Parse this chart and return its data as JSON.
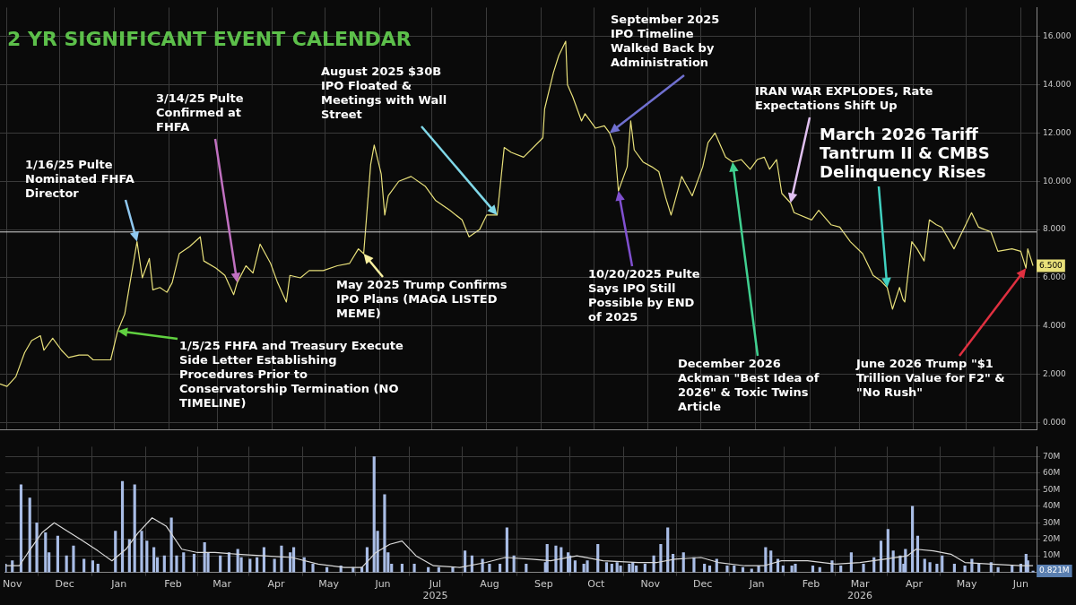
{
  "chart_data": [
    {
      "type": "line",
      "title": "2 YR SIGNIFICANT EVENT CALENDAR",
      "grid": true,
      "legend": false,
      "marker": "none",
      "line_style": "solid",
      "tick_labels": "y",
      "xlim": [
        "2024-10-28",
        "2026-06-10"
      ],
      "xticks": [
        "2024-11-01",
        "2024-12-01",
        "2025-01-01",
        "2025-02-01",
        "2025-03-01",
        "2025-04-01",
        "2025-05-01",
        "2025-06-01",
        "2025-07-01",
        "2025-08-01",
        "2025-09-01",
        "2025-10-01",
        "2025-11-01",
        "2025-12-01",
        "2026-01-01",
        "2026-02-01",
        "2026-03-01",
        "2026-04-01",
        "2026-05-01",
        "2026-06-01"
      ],
      "ylim": [
        -0.3,
        17.2
      ],
      "yticks": [
        {
          "value": 0,
          "label": "0.000"
        },
        {
          "value": 2,
          "label": "2.000"
        },
        {
          "value": 4,
          "label": "4.000"
        },
        {
          "value": 6,
          "label": "6.000"
        },
        {
          "value": 8,
          "label": "8.000"
        },
        {
          "value": 10,
          "label": "10.000"
        },
        {
          "value": 12,
          "label": "12.000"
        },
        {
          "value": 14,
          "label": "14.000"
        },
        {
          "value": 16,
          "label": "16.000"
        }
      ],
      "ref_lines": [
        {
          "axis": "y",
          "value": 7.9,
          "color": "#d8d8d8"
        }
      ],
      "series": [
        {
          "type": "line",
          "color": "#e8e07a",
          "x": [
            "2024-10-28",
            "2024-11-01",
            "2024-11-06",
            "2024-11-11",
            "2024-11-15",
            "2024-11-20",
            "2024-11-22",
            "2024-11-27",
            "2024-12-02",
            "2024-12-06",
            "2024-12-12",
            "2024-12-17",
            "2024-12-20",
            "2024-12-30",
            "2025-01-03",
            "2025-01-07",
            "2025-01-10",
            "2025-01-14",
            "2025-01-17",
            "2025-01-21",
            "2025-01-23",
            "2025-01-27",
            "2025-01-31",
            "2025-02-03",
            "2025-02-07",
            "2025-02-13",
            "2025-02-19",
            "2025-02-21",
            "2025-02-28",
            "2025-03-05",
            "2025-03-10",
            "2025-03-12",
            "2025-03-17",
            "2025-03-21",
            "2025-03-25",
            "2025-03-31",
            "2025-04-04",
            "2025-04-09",
            "2025-04-11",
            "2025-04-17",
            "2025-04-22",
            "2025-04-30",
            "2025-05-08",
            "2025-05-15",
            "2025-05-20",
            "2025-05-23",
            "2025-05-27",
            "2025-05-29",
            "2025-06-02",
            "2025-06-04",
            "2025-06-06",
            "2025-06-12",
            "2025-06-19",
            "2025-06-27",
            "2025-07-03",
            "2025-07-11",
            "2025-07-18",
            "2025-07-22",
            "2025-07-28",
            "2025-08-01",
            "2025-08-07",
            "2025-08-11",
            "2025-08-15",
            "2025-08-22",
            "2025-09-02",
            "2025-09-03",
            "2025-09-08",
            "2025-09-11",
            "2025-09-15",
            "2025-09-16",
            "2025-09-19",
            "2025-09-24",
            "2025-09-26",
            "2025-10-02",
            "2025-10-07",
            "2025-10-10",
            "2025-10-13",
            "2025-10-15",
            "2025-10-20",
            "2025-10-22",
            "2025-10-24",
            "2025-10-29",
            "2025-11-03",
            "2025-11-07",
            "2025-11-11",
            "2025-11-14",
            "2025-11-20",
            "2025-11-26",
            "2025-12-02",
            "2025-12-05",
            "2025-12-09",
            "2025-12-15",
            "2025-12-19",
            "2025-12-24",
            "2025-12-29",
            "2026-01-02",
            "2026-01-06",
            "2026-01-09",
            "2026-01-13",
            "2026-01-16",
            "2026-01-21",
            "2026-01-23",
            "2026-02-02",
            "2026-02-06",
            "2026-02-13",
            "2026-02-18",
            "2026-02-24",
            "2026-03-03",
            "2026-03-09",
            "2026-03-13",
            "2026-03-17",
            "2026-03-20",
            "2026-03-24",
            "2026-03-26",
            "2026-03-27",
            "2026-03-31",
            "2026-04-03",
            "2026-04-07",
            "2026-04-10",
            "2026-04-14",
            "2026-04-17",
            "2026-04-24",
            "2026-04-30",
            "2026-05-04",
            "2026-05-08",
            "2026-05-15",
            "2026-05-19",
            "2026-05-27",
            "2026-06-01",
            "2026-06-04",
            "2026-06-05",
            "2026-06-08"
          ],
          "values": [
            1.6,
            1.5,
            1.9,
            2.9,
            3.4,
            3.6,
            3.0,
            3.5,
            3.0,
            2.7,
            2.8,
            2.8,
            2.6,
            2.6,
            3.8,
            4.5,
            5.8,
            7.5,
            6.0,
            6.8,
            5.5,
            5.6,
            5.4,
            5.8,
            7.0,
            7.3,
            7.7,
            6.7,
            6.4,
            6.1,
            5.3,
            5.8,
            6.5,
            6.2,
            7.4,
            6.6,
            5.8,
            5.0,
            6.1,
            6.0,
            6.3,
            6.3,
            6.5,
            6.6,
            7.2,
            7.0,
            10.7,
            11.5,
            10.3,
            8.6,
            9.4,
            10.0,
            10.2,
            9.8,
            9.2,
            8.8,
            8.4,
            7.7,
            8.0,
            8.6,
            8.6,
            11.4,
            11.2,
            11.0,
            11.8,
            13.0,
            14.5,
            15.2,
            15.8,
            14.0,
            13.5,
            12.5,
            12.8,
            12.2,
            12.3,
            12.0,
            11.4,
            9.6,
            10.6,
            12.5,
            11.3,
            10.8,
            10.6,
            10.4,
            9.3,
            8.6,
            10.2,
            9.4,
            10.6,
            11.6,
            12.0,
            11.0,
            10.8,
            10.9,
            10.5,
            10.9,
            11.0,
            10.5,
            10.9,
            9.5,
            9.1,
            8.7,
            8.4,
            8.8,
            8.2,
            8.1,
            7.5,
            7.0,
            6.1,
            5.9,
            5.6,
            4.7,
            5.6,
            5.1,
            5.0,
            7.5,
            7.2,
            6.7,
            8.4,
            8.2,
            8.1,
            7.2,
            8.1,
            8.7,
            8.1,
            7.9,
            7.1,
            7.2,
            7.1,
            6.4,
            7.2,
            6.5
          ]
        }
      ],
      "annotations": [
        {
          "text": "1/16/25 Pulte Nominated FHFA Director",
          "x": "2025-01-14",
          "y": 7.5
        },
        {
          "text": "3/14/25 Pulte Confirmed at FHFA",
          "x": "2025-03-12",
          "y": 5.8
        },
        {
          "text": "August 2025 $30B IPO Floated & Meetings with Wall Street",
          "x": "2025-08-07",
          "y": 8.6
        },
        {
          "text": "September 2025 IPO Timeline Walked Back by Administration",
          "x": "2025-10-10",
          "y": 12.0
        },
        {
          "text": "IRAN WAR EXPLODES, Rate Expectations Shift Up",
          "x": "2026-01-21",
          "y": 9.1
        },
        {
          "text": "March 2026 Tariff Tantrum II & CMBS Delinquency Rises",
          "x": "2026-03-17",
          "y": 5.6
        },
        {
          "text": "May 2025 Trump Confirms IPO Plans (MAGA LISTED MEME)",
          "x": "2025-05-23",
          "y": 7.0
        },
        {
          "text": "1/5/25 FHFA and Treasury Execute Side Letter Establishing Procedures Prior to Conservatorship Termination (NO TIMELINE)",
          "x": "2025-01-03",
          "y": 3.8
        },
        {
          "text": "10/20/2025 Pulte Says IPO Still Possible by END of 2025",
          "x": "2025-10-15",
          "y": 9.6
        },
        {
          "text": "December 2026 Ackman \"Best Idea of 2026\" & Toxic Twins Article",
          "x": "2025-12-19",
          "y": 10.8
        },
        {
          "text": "June 2026 Trump \"$1 Trillion Value for F2\" & \"No Rush\"",
          "x": "2026-06-04",
          "y": 6.4
        },
        {
          "text": "6.500",
          "x": "2026-06-08",
          "y": 6.5
        }
      ]
    },
    {
      "type": "bar",
      "grid": true,
      "legend": false,
      "marker": "none",
      "xlim": [
        "2024-10-28",
        "2026-06-10"
      ],
      "xticks": [
        {
          "value": "2024-11-01",
          "label": "Nov"
        },
        {
          "value": "2024-12-01",
          "label": "Dec"
        },
        {
          "value": "2025-01-01",
          "label": "Jan"
        },
        {
          "value": "2025-02-01",
          "label": "Feb"
        },
        {
          "value": "2025-03-01",
          "label": "Mar"
        },
        {
          "value": "2025-04-01",
          "label": "Apr"
        },
        {
          "value": "2025-05-01",
          "label": "May"
        },
        {
          "value": "2025-06-01",
          "label": "Jun"
        },
        {
          "value": "2025-07-01",
          "label": "Jul\n2025"
        },
        {
          "value": "2025-08-01",
          "label": "Aug"
        },
        {
          "value": "2025-09-01",
          "label": "Sep"
        },
        {
          "value": "2025-10-01",
          "label": "Oct"
        },
        {
          "value": "2025-11-01",
          "label": "Nov"
        },
        {
          "value": "2025-12-01",
          "label": "Dec"
        },
        {
          "value": "2026-01-01",
          "label": "Jan"
        },
        {
          "value": "2026-02-01",
          "label": "Feb"
        },
        {
          "value": "2026-03-01",
          "label": "Mar\n2026"
        },
        {
          "value": "2026-04-01",
          "label": "Apr"
        },
        {
          "value": "2026-05-01",
          "label": "May"
        },
        {
          "value": "2026-06-01",
          "label": "Jun"
        }
      ],
      "ylim": [
        0,
        76
      ],
      "yticks": [
        {
          "value": 10,
          "label": "10M"
        },
        {
          "value": 20,
          "label": "20M"
        },
        {
          "value": 30,
          "label": "30M"
        },
        {
          "value": 40,
          "label": "40M"
        },
        {
          "value": 50,
          "label": "50M"
        },
        {
          "value": 60,
          "label": "60M"
        },
        {
          "value": 70,
          "label": "70M"
        }
      ],
      "series": [
        {
          "type": "bar",
          "color": "#a9bde6",
          "x": [
            "2024-10-28",
            "2024-11-01",
            "2024-11-06",
            "2024-11-11",
            "2024-11-15",
            "2024-11-20",
            "2024-11-22",
            "2024-11-27",
            "2024-12-02",
            "2024-12-06",
            "2024-12-12",
            "2024-12-17",
            "2024-12-20",
            "2024-12-30",
            "2025-01-03",
            "2025-01-07",
            "2025-01-10",
            "2025-01-14",
            "2025-01-17",
            "2025-01-21",
            "2025-01-23",
            "2025-01-27",
            "2025-01-31",
            "2025-02-03",
            "2025-02-07",
            "2025-02-13",
            "2025-02-19",
            "2025-02-21",
            "2025-02-28",
            "2025-03-05",
            "2025-03-10",
            "2025-03-12",
            "2025-03-17",
            "2025-03-21",
            "2025-03-25",
            "2025-03-31",
            "2025-04-04",
            "2025-04-09",
            "2025-04-11",
            "2025-04-17",
            "2025-04-22",
            "2025-04-30",
            "2025-05-08",
            "2025-05-15",
            "2025-05-20",
            "2025-05-23",
            "2025-05-27",
            "2025-05-29",
            "2025-06-02",
            "2025-06-04",
            "2025-06-06",
            "2025-06-12",
            "2025-06-19",
            "2025-06-27",
            "2025-07-03",
            "2025-07-11",
            "2025-07-18",
            "2025-07-22",
            "2025-07-28",
            "2025-08-01",
            "2025-08-07",
            "2025-08-11",
            "2025-08-15",
            "2025-08-22",
            "2025-09-02",
            "2025-09-03",
            "2025-09-08",
            "2025-09-11",
            "2025-09-15",
            "2025-09-16",
            "2025-09-19",
            "2025-09-24",
            "2025-09-26",
            "2025-10-02",
            "2025-10-07",
            "2025-10-10",
            "2025-10-13",
            "2025-10-15",
            "2025-10-20",
            "2025-10-22",
            "2025-10-24",
            "2025-10-29",
            "2025-11-03",
            "2025-11-07",
            "2025-11-11",
            "2025-11-14",
            "2025-11-20",
            "2025-11-26",
            "2025-12-02",
            "2025-12-05",
            "2025-12-09",
            "2025-12-15",
            "2025-12-19",
            "2025-12-24",
            "2025-12-29",
            "2026-01-02",
            "2026-01-06",
            "2026-01-09",
            "2026-01-13",
            "2026-01-16",
            "2026-01-21",
            "2026-01-23",
            "2026-02-02",
            "2026-02-06",
            "2026-02-13",
            "2026-02-18",
            "2026-02-24",
            "2026-03-03",
            "2026-03-09",
            "2026-03-13",
            "2026-03-17",
            "2026-03-20",
            "2026-03-24",
            "2026-03-26",
            "2026-03-27",
            "2026-03-31",
            "2026-04-03",
            "2026-04-07",
            "2026-04-10",
            "2026-04-14",
            "2026-04-17",
            "2026-04-24",
            "2026-04-30",
            "2026-05-04",
            "2026-05-08",
            "2026-05-15",
            "2026-05-19",
            "2026-05-27",
            "2026-06-01",
            "2026-06-04",
            "2026-06-05",
            "2026-06-08"
          ],
          "values": [
            5,
            7,
            53,
            45,
            30,
            24,
            12,
            22,
            10,
            16,
            8,
            7,
            5,
            25,
            55,
            20,
            53,
            25,
            19,
            15,
            9,
            10,
            33,
            10,
            12,
            11,
            18,
            12,
            10,
            12,
            14,
            9,
            8,
            9,
            15,
            8,
            16,
            12,
            15,
            9,
            5,
            3,
            4,
            3,
            3,
            15,
            70,
            25,
            47,
            12,
            5,
            5,
            5,
            3,
            3,
            3,
            13,
            10,
            8,
            5,
            5,
            27,
            10,
            5,
            6,
            17,
            16,
            15,
            12,
            10,
            7,
            5,
            7,
            17,
            6,
            5,
            6,
            4,
            5,
            6,
            4,
            5,
            10,
            17,
            27,
            11,
            12,
            9,
            5,
            4,
            8,
            4,
            4,
            3,
            2,
            4,
            15,
            13,
            8,
            4,
            4,
            5,
            4,
            3,
            7,
            4,
            12,
            5,
            9,
            19,
            26,
            13,
            10,
            5,
            14,
            40,
            22,
            8,
            6,
            5,
            10,
            5,
            4,
            8,
            5,
            6,
            3,
            4,
            5,
            11,
            7,
            0.821
          ]
        },
        {
          "type": "line",
          "color": "#d8d8d8",
          "x": [
            "2024-10-28",
            "2024-11-05",
            "2024-11-10",
            "2024-11-18",
            "2024-11-25",
            "2024-12-01",
            "2024-12-10",
            "2024-12-20",
            "2024-12-28",
            "2025-01-05",
            "2025-01-12",
            "2025-01-20",
            "2025-01-28",
            "2025-02-06",
            "2025-02-15",
            "2025-02-25",
            "2025-03-10",
            "2025-03-25",
            "2025-04-10",
            "2025-04-25",
            "2025-05-10",
            "2025-05-20",
            "2025-05-28",
            "2025-06-05",
            "2025-06-12",
            "2025-06-20",
            "2025-06-30",
            "2025-07-15",
            "2025-07-30",
            "2025-08-10",
            "2025-08-25",
            "2025-09-05",
            "2025-09-20",
            "2025-10-05",
            "2025-10-25",
            "2025-11-05",
            "2025-11-15",
            "2025-11-30",
            "2025-12-10",
            "2025-12-25",
            "2026-01-05",
            "2026-01-15",
            "2026-01-30",
            "2026-02-15",
            "2026-03-01",
            "2026-03-15",
            "2026-03-28",
            "2026-04-02",
            "2026-04-12",
            "2026-04-22",
            "2026-04-30",
            "2026-05-15",
            "2026-06-01",
            "2026-06-08"
          ],
          "values": [
            4,
            4,
            12,
            24,
            30,
            26,
            20,
            13,
            7,
            14,
            24,
            33,
            28,
            14,
            12,
            12,
            11,
            10,
            9,
            5,
            3,
            3,
            12,
            17,
            19,
            10,
            4,
            3,
            6,
            9,
            8,
            7,
            10,
            7,
            6,
            6,
            8,
            9,
            6,
            4,
            4,
            7,
            7,
            5,
            6,
            8,
            10,
            14,
            13,
            11,
            6,
            5,
            4,
            4
          ]
        }
      ],
      "annotations": [
        {
          "text": "0.821M",
          "x": "2026-06-08",
          "y": 0.821
        }
      ]
    }
  ]
}
